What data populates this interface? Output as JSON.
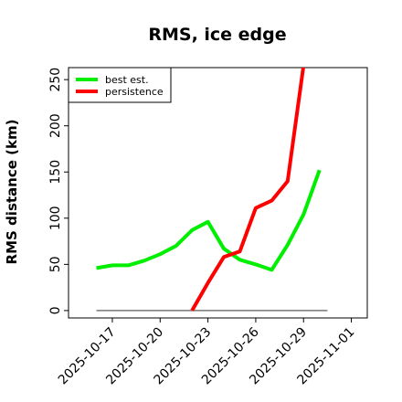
{
  "chart_data": {
    "type": "line",
    "title": "RMS, ice edge",
    "xlabel": "",
    "ylabel": "RMS distance (km)",
    "x_tick_labels": [
      "2025-10-17",
      "2025-10-20",
      "2025-10-23",
      "2025-10-26",
      "2025-10-29",
      "2025-11-01"
    ],
    "x_tick_dates": [
      "2025-10-17",
      "2025-10-20",
      "2025-10-23",
      "2025-10-26",
      "2025-10-29",
      "2025-11-01"
    ],
    "x_range": [
      "2025-10-14T06:00",
      "2025-11-02T00:00"
    ],
    "y_ticks": [
      0,
      50,
      100,
      150,
      200,
      250
    ],
    "y_tick_labels": [
      "0",
      "50",
      "100",
      "150",
      "200",
      "250"
    ],
    "ylim": [
      -8,
      263
    ],
    "grid": false,
    "legend_position": "top-left",
    "baseline": {
      "x": [
        "2025-10-16",
        "2025-10-30T12:00"
      ],
      "y": [
        0,
        0
      ],
      "color": "#777777"
    },
    "series": [
      {
        "name": "best est.",
        "color": "#00ee00",
        "x": [
          "2025-10-16",
          "2025-10-17",
          "2025-10-18",
          "2025-10-19",
          "2025-10-20",
          "2025-10-21",
          "2025-10-22",
          "2025-10-23",
          "2025-10-24",
          "2025-10-25",
          "2025-10-26",
          "2025-10-27",
          "2025-10-28",
          "2025-10-29",
          "2025-10-30"
        ],
        "y": [
          46,
          49,
          49,
          54,
          61,
          70,
          87,
          96,
          67,
          55,
          50,
          44,
          71,
          104,
          152
        ]
      },
      {
        "name": "persistence",
        "color": "#ff0000",
        "x": [
          "2025-10-22",
          "2025-10-23",
          "2025-10-24",
          "2025-10-25",
          "2025-10-26",
          "2025-10-27",
          "2025-10-28",
          "2025-10-29"
        ],
        "y": [
          0,
          30,
          58,
          64,
          111,
          119,
          140,
          265
        ]
      }
    ]
  }
}
